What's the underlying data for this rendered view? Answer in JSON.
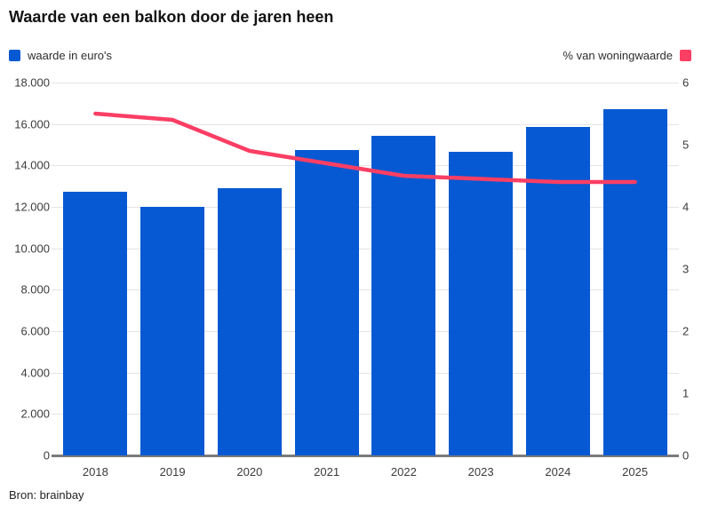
{
  "title": "Waarde van een balkon door de jaren heen",
  "source": "Bron: brainbay",
  "legend": {
    "left": {
      "label": "waarde in euro's",
      "color": "#0659d2"
    },
    "right": {
      "label": "% van woningwaarde",
      "color": "#fb3e64"
    }
  },
  "chart_data": {
    "type": "combo",
    "categories": [
      "2018",
      "2019",
      "2020",
      "2021",
      "2022",
      "2023",
      "2024",
      "2025"
    ],
    "series": [
      {
        "name": "waarde in euro's",
        "type": "bar",
        "axis": "left",
        "color": "#0659d2",
        "values": [
          12750,
          12000,
          12900,
          14750,
          15450,
          14650,
          15850,
          16700
        ]
      },
      {
        "name": "% van woningwaarde",
        "type": "line",
        "axis": "right",
        "color": "#fb3e64",
        "values": [
          5.5,
          5.4,
          4.9,
          4.7,
          4.5,
          4.45,
          4.4,
          4.4
        ]
      }
    ],
    "left_axis": {
      "min": 0,
      "max": 18000,
      "step": 2000,
      "tick_labels": [
        "0",
        "2.000",
        "4.000",
        "6.000",
        "8.000",
        "10.000",
        "12.000",
        "14.000",
        "16.000",
        "18.000"
      ]
    },
    "right_axis": {
      "min": 0,
      "max": 6,
      "step": 1,
      "tick_labels": [
        "0",
        "1",
        "2",
        "3",
        "4",
        "5",
        "6"
      ]
    },
    "grid": true,
    "legend_position": "top",
    "grid_color": "#e4e4e4",
    "baseline_color": "#7b7b7b"
  }
}
